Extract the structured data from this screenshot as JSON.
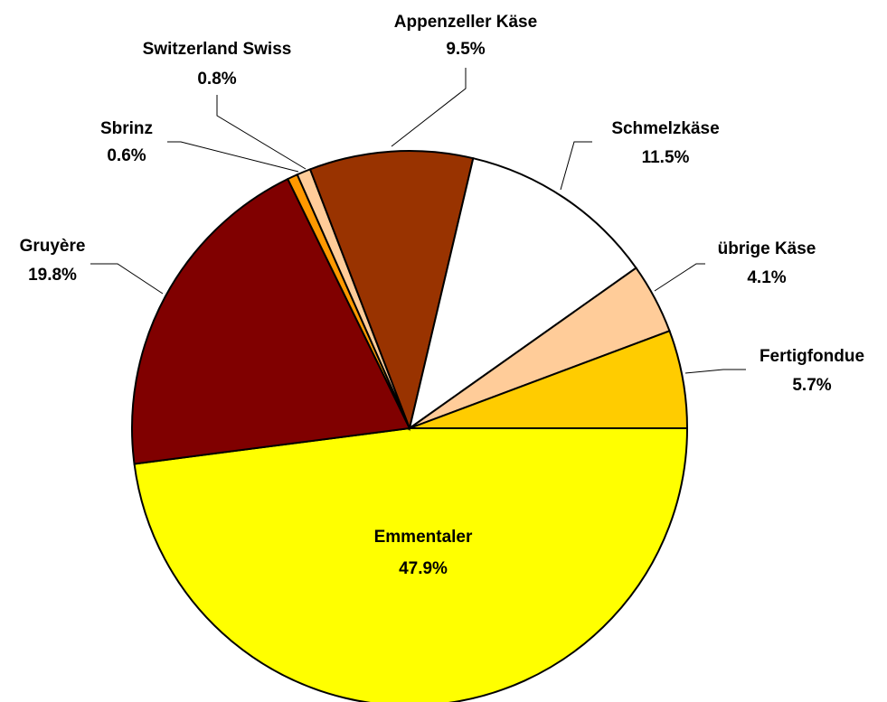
{
  "chart_data": {
    "type": "pie",
    "categories": [
      "Emmentaler",
      "Gruyère",
      "Sbrinz",
      "Switzerland Swiss",
      "Appenzeller Käse",
      "Schmelzkäse",
      "übrige Käse",
      "Fertigfondue"
    ],
    "values": [
      47.9,
      19.8,
      0.6,
      0.8,
      9.5,
      11.5,
      4.1,
      5.7
    ],
    "value_labels": [
      "47.9%",
      "19.8%",
      "0.6%",
      "0.8%",
      "9.5%",
      "11.5%",
      "4.1%",
      "5.7%"
    ],
    "colors": [
      "#ffff00",
      "#800000",
      "#ff9900",
      "#ffcc99",
      "#993300",
      "#ffffff",
      "#ffcc99",
      "#ffcc00"
    ]
  }
}
